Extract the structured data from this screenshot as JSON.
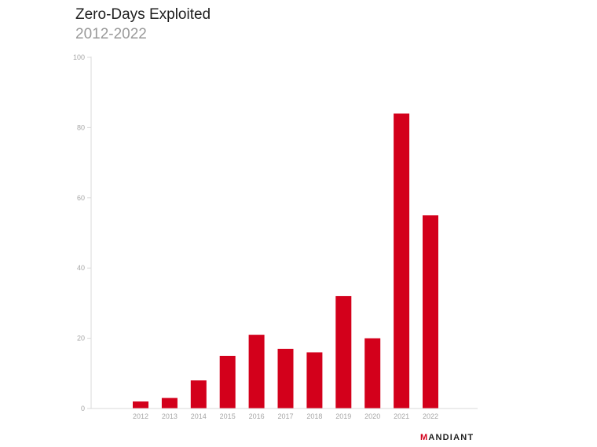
{
  "chart_data": {
    "type": "bar",
    "title": "Zero-Days Exploited",
    "subtitle": "2012-2022",
    "xlabel": "",
    "ylabel": "",
    "categories": [
      "2012",
      "2013",
      "2014",
      "2015",
      "2016",
      "2017",
      "2018",
      "2019",
      "2020",
      "2021",
      "2022"
    ],
    "values": [
      2,
      3,
      8,
      15,
      21,
      17,
      16,
      32,
      20,
      84,
      55
    ],
    "ylim": [
      0,
      100
    ],
    "yticks": [
      0,
      20,
      40,
      60,
      80,
      100
    ],
    "grid": false,
    "legend": "none",
    "bar_color": "#d3001b",
    "axis_color": "#d9d9d9",
    "tick_label_color": "#a6a6a6"
  },
  "brand": {
    "first": "M",
    "rest": "ANDIANT"
  }
}
